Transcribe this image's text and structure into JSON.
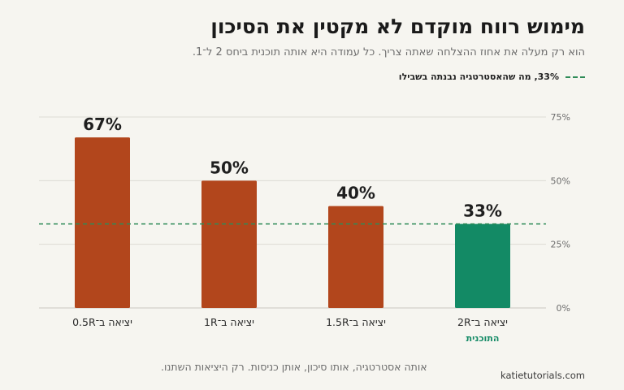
{
  "header": {
    "title": "מימוש רווח מוקדם לא מקטין את הסיכון",
    "subtitle": "הוא רק מעלה את אחוז ההצלחה שאתה צריך. כל עמודה היא אותה תוכנית ביחס 2 ל־1."
  },
  "legend": {
    "label": "33%, מה שהאסטרטגיה נבנתה בשבילו"
  },
  "footer": {
    "note": "אותה אסטרטגיה, אותו סיכון, אותן כניסות. רק היציאות השתנו.",
    "site": "katietutorials.com"
  },
  "colors": {
    "bar": "#b2461c",
    "highlight": "#138a65",
    "reference": "#2e8b57",
    "grid": "#dcdad4",
    "axis": "#c9c7c0"
  },
  "chart_data": {
    "type": "bar",
    "categories": [
      "יציאה ב־0.5R",
      "יציאה ב־1R",
      "יציאה ב־1.5R",
      "יציאה ב־2R"
    ],
    "values": [
      67,
      50,
      40,
      33
    ],
    "value_labels": [
      "67%",
      "50%",
      "40%",
      "33%"
    ],
    "category_sublabels": [
      "",
      "",
      "",
      "התוכנית"
    ],
    "highlight_index": 3,
    "reference_line": {
      "value": 33
    },
    "ylim": [
      0,
      75
    ],
    "yticks": [
      0,
      25,
      50,
      75
    ],
    "ytick_labels": [
      "0%",
      "25%",
      "50%",
      "75%"
    ],
    "y_axis_side": "right",
    "grid": true
  }
}
